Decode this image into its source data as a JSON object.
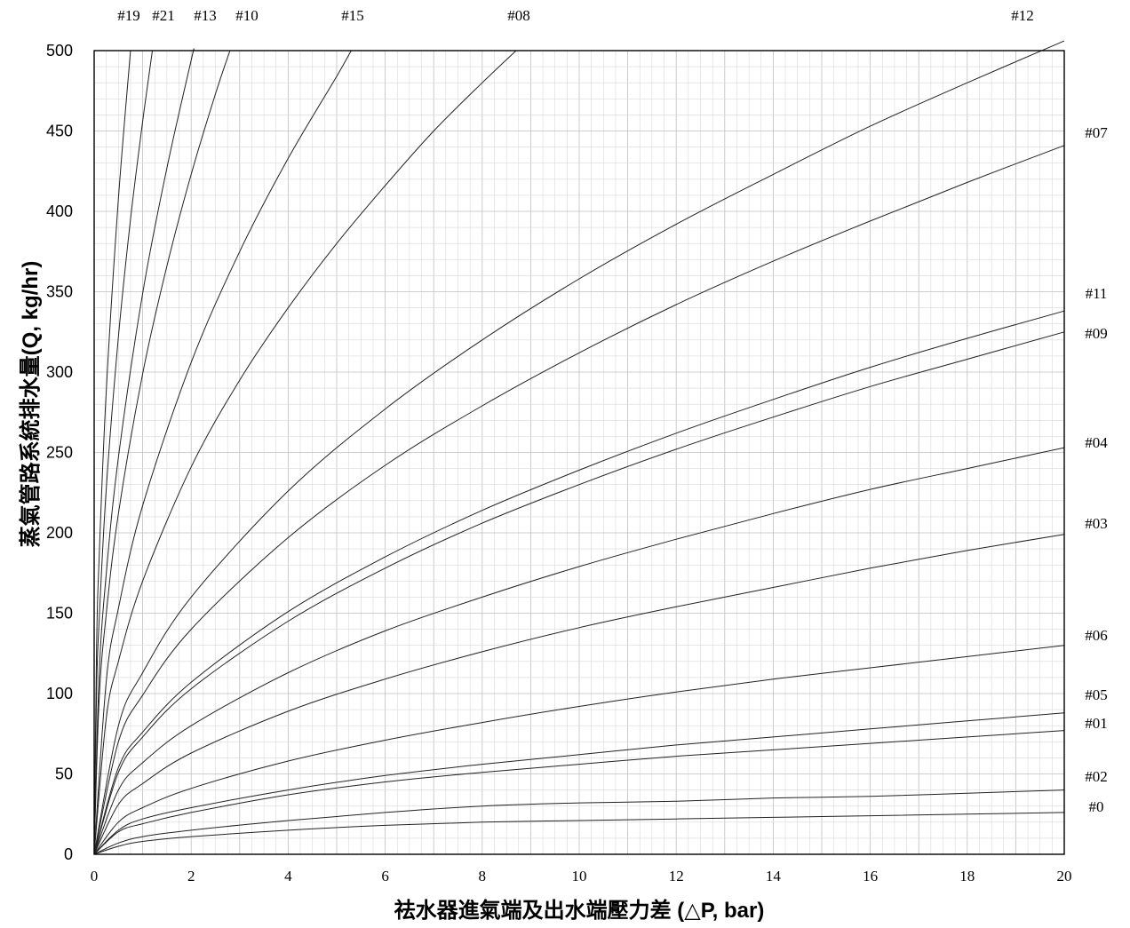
{
  "chart_data": {
    "type": "line",
    "title": "",
    "xlabel": "祛水器進氣端及出水端壓力差 (△P, bar)",
    "ylabel": "蒸氣管路系統排水量(Q, kg/hr)",
    "xlim": [
      0,
      20
    ],
    "ylim": [
      0,
      500
    ],
    "x_ticks": [
      "0",
      "2",
      "4",
      "6",
      "8",
      "10",
      "12",
      "14",
      "16",
      "18",
      "20"
    ],
    "y_ticks": [
      "0",
      "50",
      "100",
      "150",
      "200",
      "250",
      "300",
      "350",
      "400",
      "450",
      "500"
    ],
    "grid": true,
    "series": [
      {
        "name": "#0",
        "x": [
          0,
          0.5,
          1,
          2,
          4,
          6,
          8,
          10,
          12,
          14,
          16,
          18,
          20
        ],
        "y": [
          0,
          5,
          8,
          11,
          15,
          18,
          20,
          21,
          22,
          23,
          24,
          25,
          26
        ]
      },
      {
        "name": "#02",
        "x": [
          0,
          0.5,
          1,
          2,
          4,
          6,
          8,
          10,
          12,
          14,
          16,
          18,
          20
        ],
        "y": [
          0,
          7,
          11,
          15,
          21,
          26,
          30,
          32,
          33,
          35,
          36,
          38,
          40
        ]
      },
      {
        "name": "#01",
        "x": [
          0,
          0.5,
          1,
          2,
          4,
          6,
          8,
          10,
          12,
          14,
          16,
          18,
          20
        ],
        "y": [
          0,
          14,
          19,
          26,
          37,
          45,
          51,
          56,
          61,
          65,
          69,
          73,
          77
        ]
      },
      {
        "name": "#05",
        "x": [
          0,
          0.5,
          1,
          2,
          4,
          6,
          8,
          10,
          12,
          14,
          16,
          18,
          20
        ],
        "y": [
          0,
          15,
          22,
          29,
          40,
          49,
          56,
          62,
          68,
          73,
          78,
          83,
          88
        ]
      },
      {
        "name": "#06",
        "x": [
          0,
          0.5,
          1,
          2,
          4,
          6,
          8,
          10,
          12,
          14,
          16,
          18,
          20
        ],
        "y": [
          0,
          20,
          29,
          41,
          58,
          71,
          82,
          92,
          101,
          109,
          116,
          123,
          130
        ]
      },
      {
        "name": "#03",
        "x": [
          0,
          0.5,
          1,
          2,
          4,
          6,
          8,
          10,
          12,
          14,
          16,
          18,
          20
        ],
        "y": [
          0,
          31,
          44,
          63,
          89,
          109,
          126,
          141,
          154,
          166,
          178,
          189,
          199
        ]
      },
      {
        "name": "#04",
        "x": [
          0,
          0.5,
          1,
          2,
          4,
          6,
          8,
          10,
          12,
          14,
          16,
          18,
          20
        ],
        "y": [
          0,
          40,
          57,
          80,
          113,
          139,
          160,
          179,
          196,
          212,
          227,
          240,
          253
        ]
      },
      {
        "name": "#09",
        "x": [
          0,
          0.5,
          1,
          2,
          4,
          6,
          8,
          10,
          12,
          14,
          16,
          18,
          20
        ],
        "y": [
          0,
          51,
          73,
          103,
          145,
          178,
          206,
          230,
          252,
          272,
          291,
          308,
          325
        ]
      },
      {
        "name": "#11",
        "x": [
          0,
          0.5,
          1,
          2,
          4,
          6,
          8,
          10,
          12,
          14,
          16,
          18,
          20
        ],
        "y": [
          0,
          54,
          76,
          107,
          151,
          185,
          214,
          239,
          262,
          283,
          303,
          321,
          338
        ]
      },
      {
        "name": "#07",
        "x": [
          0,
          0.5,
          1,
          2,
          4,
          6,
          8,
          10,
          12,
          14,
          16,
          18,
          20
        ],
        "y": [
          0,
          70,
          99,
          140,
          197,
          242,
          279,
          312,
          342,
          369,
          394,
          418,
          441
        ]
      },
      {
        "name": "#12",
        "x": [
          0,
          0.5,
          1,
          2,
          4,
          6,
          8,
          10,
          12,
          14,
          16,
          18,
          20
        ],
        "y": [
          0,
          80,
          113,
          160,
          226,
          277,
          320,
          358,
          392,
          423,
          453,
          480,
          506
        ]
      },
      {
        "name": "#08",
        "x": [
          0,
          0.25,
          0.5,
          1,
          2,
          3,
          4,
          5,
          6,
          7,
          8,
          8.7
        ],
        "y": [
          0,
          85,
          120,
          170,
          241,
          295,
          340,
          380,
          416,
          450,
          480,
          500
        ]
      },
      {
        "name": "#15",
        "x": [
          0,
          0.25,
          0.5,
          1,
          2,
          3,
          4,
          5,
          5.3
        ],
        "y": [
          0,
          108,
          153,
          217,
          306,
          375,
          433,
          484,
          500
        ]
      },
      {
        "name": "#10",
        "x": [
          0,
          0.1,
          0.25,
          0.5,
          1,
          1.5,
          2,
          2.5,
          2.8
        ],
        "y": [
          0,
          95,
          150,
          212,
          299,
          366,
          423,
          473,
          500
        ]
      },
      {
        "name": "#13",
        "x": [
          0,
          0.1,
          0.25,
          0.5,
          1,
          1.5,
          2,
          2.05
        ],
        "y": [
          0,
          110,
          175,
          247,
          349,
          427,
          494,
          500
        ]
      },
      {
        "name": "#21",
        "x": [
          0,
          0.05,
          0.1,
          0.25,
          0.5,
          0.75,
          1,
          1.2
        ],
        "y": [
          0,
          102,
          144,
          228,
          322,
          395,
          456,
          500
        ]
      },
      {
        "name": "#19",
        "x": [
          0,
          0.05,
          0.1,
          0.25,
          0.5,
          0.75
        ],
        "y": [
          0,
          129,
          183,
          289,
          408,
          500
        ]
      }
    ]
  },
  "series_labels": {
    "top": [
      "#19",
      "#21",
      "#13",
      "#10",
      "#15",
      "#08",
      "#12"
    ],
    "right": [
      "#07",
      "#11",
      "#09",
      "#04",
      "#03",
      "#06",
      "#05",
      "#01",
      "#02",
      "#0"
    ]
  }
}
